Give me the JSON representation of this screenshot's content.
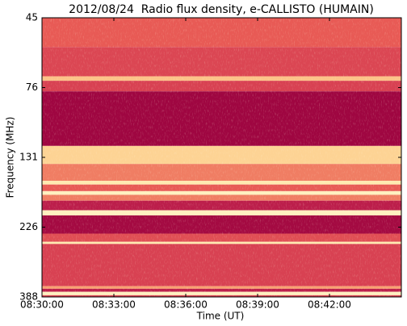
{
  "chart_data": {
    "type": "spectrogram",
    "title": "2012/08/24  Radio flux density, e-CALLISTO (HUMAIN)",
    "xlabel": "Time (UT)",
    "ylabel": "Frequency (MHz)",
    "xlim": [
      "08:30:00",
      "08:45:00"
    ],
    "xticks": [
      "08:30:00",
      "08:33:00",
      "08:36:00",
      "08:39:00",
      "08:42:00"
    ],
    "ylim": [
      45,
      388
    ],
    "yticks": [
      45,
      76,
      131,
      226,
      388
    ],
    "y_inverted": true,
    "colormap": [
      "#98003e",
      "#c8284f",
      "#e85a55",
      "#f8a070",
      "#ffe4a0",
      "#fffbe0"
    ],
    "bands": [
      {
        "from": 45,
        "to": 58,
        "level": 0.4
      },
      {
        "from": 58,
        "to": 71,
        "level": 0.32
      },
      {
        "from": 71,
        "to": 73,
        "level": 0.7
      },
      {
        "from": 73,
        "to": 79,
        "level": 0.3
      },
      {
        "from": 79,
        "to": 122,
        "level": 0.03
      },
      {
        "from": 122,
        "to": 140,
        "level": 0.75
      },
      {
        "from": 140,
        "to": 163,
        "level": 0.5
      },
      {
        "from": 163,
        "to": 168,
        "level": 0.85
      },
      {
        "from": 168,
        "to": 177,
        "level": 0.4
      },
      {
        "from": 177,
        "to": 182,
        "level": 0.9
      },
      {
        "from": 182,
        "to": 190,
        "level": 0.5
      },
      {
        "from": 190,
        "to": 203,
        "level": 0.15
      },
      {
        "from": 203,
        "to": 210,
        "level": 0.9
      },
      {
        "from": 210,
        "to": 241,
        "level": 0.05
      },
      {
        "from": 241,
        "to": 260,
        "level": 0.35
      },
      {
        "from": 260,
        "to": 265,
        "level": 0.85
      },
      {
        "from": 265,
        "to": 363,
        "level": 0.3
      },
      {
        "from": 363,
        "to": 369,
        "level": 0.6
      },
      {
        "from": 369,
        "to": 376,
        "level": 0.15
      },
      {
        "from": 376,
        "to": 384,
        "level": 0.9
      },
      {
        "from": 384,
        "to": 388,
        "level": 0.3
      }
    ]
  }
}
